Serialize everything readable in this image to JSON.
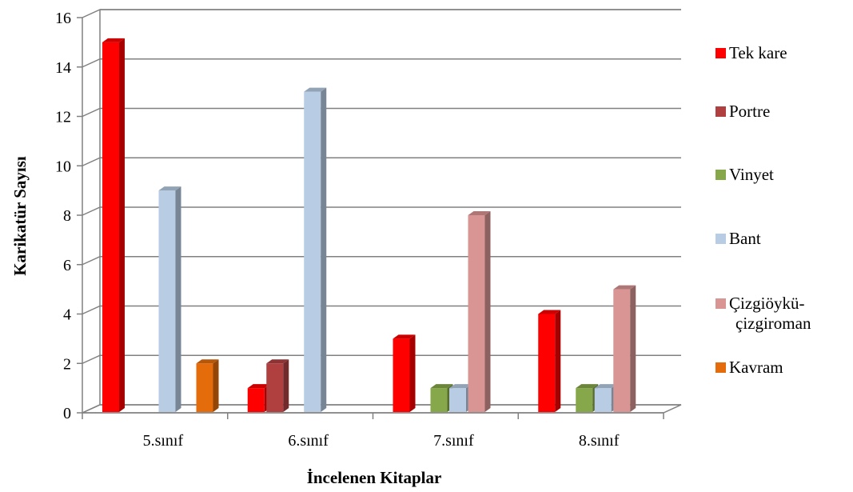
{
  "chart_data": {
    "type": "bar",
    "title": "",
    "xlabel": "İncelenen Kitaplar",
    "ylabel": "Karikatür Sayısı",
    "ylim": [
      0,
      16
    ],
    "yticks": [
      "0",
      "2",
      "4",
      "6",
      "8",
      "10",
      "12",
      "14",
      "16"
    ],
    "grid": true,
    "legend_position": "right",
    "categories": [
      "5.sınıf",
      "6.sınıf",
      "7.sınıf",
      "8.sınıf"
    ],
    "series": [
      {
        "name": "Tek kare",
        "color": "#ff0000",
        "values": [
          15,
          1,
          3,
          4
        ]
      },
      {
        "name": "Portre",
        "color": "#b04040",
        "values": [
          0,
          2,
          0,
          0
        ]
      },
      {
        "name": "Vinyet",
        "color": "#86a84a",
        "values": [
          0,
          0,
          1,
          1
        ]
      },
      {
        "name": "Bant",
        "color": "#b8cce4",
        "values": [
          9,
          13,
          1,
          1
        ]
      },
      {
        "name": "Çizgiöykü-\nçizgiroman",
        "color": "#d99594",
        "values": [
          0,
          0,
          8,
          5
        ]
      },
      {
        "name": "Kavram",
        "color": "#e46c0a",
        "values": [
          2,
          0,
          0,
          0
        ]
      }
    ]
  }
}
